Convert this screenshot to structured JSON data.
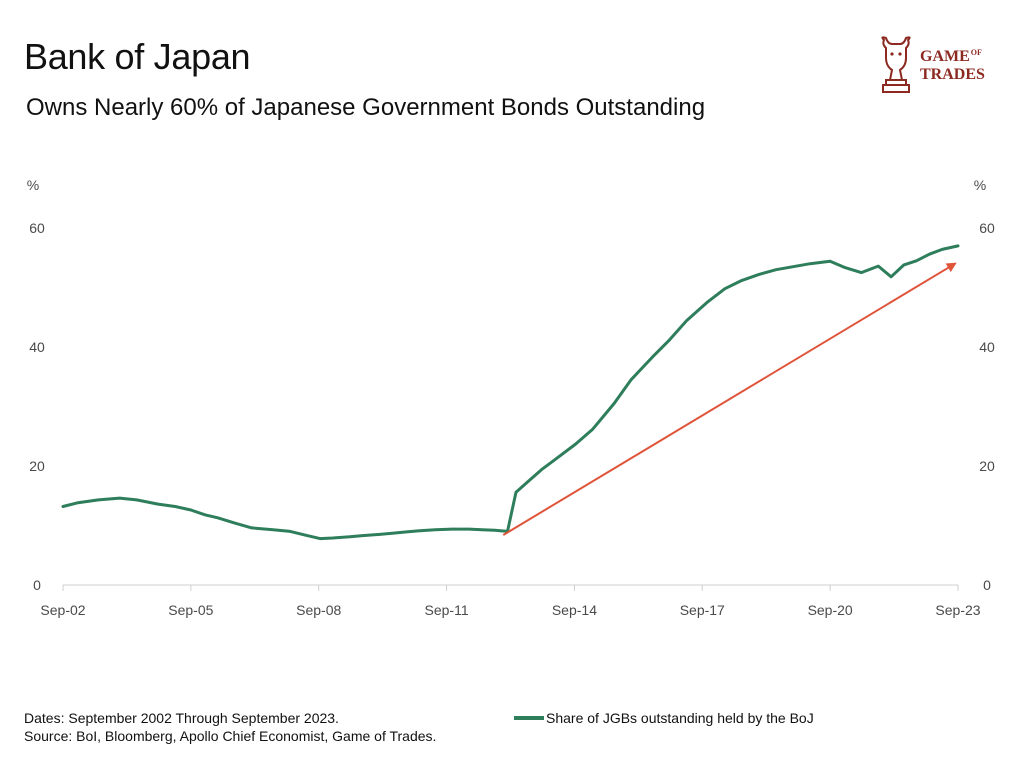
{
  "header": {
    "title": "Bank of Japan",
    "subtitle": "Owns Nearly 60% of Japanese Government Bonds Outstanding"
  },
  "logo": {
    "line1": "GAME",
    "line1_sub": "OF",
    "line2": "TRADES",
    "icon": "bull-chess-knight-icon",
    "color": "#8c2a22"
  },
  "footer": {
    "dates": "Dates: September 2002 Through September 2023.",
    "source": "Source: BoI, Bloomberg, Apollo Chief Economist, Game of Trades."
  },
  "legend": {
    "label": "Share of JGBs outstanding held by the BoJ"
  },
  "colors": {
    "series": "#2e7d5b",
    "arrow": "#e0543a",
    "axis": "#cfcfcf",
    "tick_text": "#4a4a4a"
  },
  "chart_data": {
    "type": "line",
    "title": "Bank of Japan",
    "subtitle": "Owns Nearly 60% of Japanese Government Bonds Outstanding",
    "xlabel": "",
    "ylabel_left": "%",
    "ylabel_right": "%",
    "ylim": [
      0,
      60
    ],
    "yticks": [
      0,
      20,
      40,
      60
    ],
    "xlim": [
      2002.67,
      2023.67
    ],
    "xticks": [
      {
        "x": 2002.67,
        "label": "Sep-02"
      },
      {
        "x": 2005.67,
        "label": "Sep-05"
      },
      {
        "x": 2008.67,
        "label": "Sep-08"
      },
      {
        "x": 2011.67,
        "label": "Sep-11"
      },
      {
        "x": 2014.67,
        "label": "Sep-14"
      },
      {
        "x": 2017.67,
        "label": "Sep-17"
      },
      {
        "x": 2020.67,
        "label": "Sep-20"
      },
      {
        "x": 2023.67,
        "label": "Sep-23"
      }
    ],
    "grid": false,
    "legend_position": "bottom",
    "series": [
      {
        "name": "Share of JGBs outstanding held by the BoJ",
        "x": [
          2002.67,
          2003.0,
          2003.5,
          2004.0,
          2004.4,
          2004.9,
          2005.3,
          2005.67,
          2006.0,
          2006.3,
          2006.7,
          2007.1,
          2007.6,
          2008.0,
          2008.4,
          2008.7,
          2009.0,
          2009.4,
          2009.7,
          2010.1,
          2010.4,
          2010.7,
          2011.0,
          2011.4,
          2011.8,
          2012.2,
          2012.5,
          2012.8,
          2013.1,
          2013.3,
          2013.6,
          2013.9,
          2014.2,
          2014.7,
          2015.1,
          2015.6,
          2016.0,
          2016.5,
          2016.9,
          2017.3,
          2017.8,
          2018.2,
          2018.6,
          2019.0,
          2019.4,
          2019.8,
          2020.2,
          2020.67,
          2021.0,
          2021.4,
          2021.8,
          2022.1,
          2022.4,
          2022.7,
          2023.0,
          2023.3,
          2023.67
        ],
        "values": [
          13.2,
          13.8,
          14.3,
          14.6,
          14.3,
          13.6,
          13.2,
          12.6,
          11.8,
          11.3,
          10.4,
          9.6,
          9.3,
          9.0,
          8.3,
          7.8,
          7.9,
          8.1,
          8.3,
          8.5,
          8.7,
          8.9,
          9.1,
          9.3,
          9.4,
          9.4,
          9.3,
          9.2,
          9.0,
          15.6,
          17.5,
          19.4,
          21.0,
          23.7,
          26.2,
          30.5,
          34.5,
          38.3,
          41.2,
          44.4,
          47.6,
          49.8,
          51.2,
          52.2,
          53.0,
          53.5,
          54.0,
          54.4,
          53.4,
          52.5,
          53.6,
          51.8,
          53.8,
          54.5,
          55.6,
          56.4,
          57.0
        ]
      }
    ],
    "annotations": [
      {
        "type": "arrow",
        "from": {
          "x": 2013.0,
          "y": 8.4
        },
        "to": {
          "x": 2023.6,
          "y": 54.0
        }
      }
    ]
  }
}
